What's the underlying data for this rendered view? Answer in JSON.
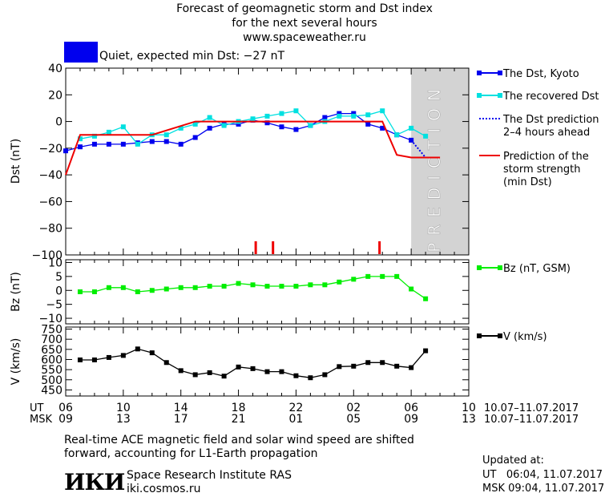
{
  "header": {
    "title_line1": "Forecast of geomagnetic storm and Dst index",
    "title_line2": "for the next several hours",
    "title_line3": "www.spaceweather.ru"
  },
  "status": {
    "box_color": "#0000ee",
    "text": "Quiet, expected min Dst: −27 nT"
  },
  "footer": {
    "note_line1": "Real-time ACE magnetic field and solar wind speed are shifted",
    "note_line2": "forward, accounting for L1-Earth propagation",
    "logo_text": "ИКИ",
    "institute": "Space Research Institute RAS",
    "website": "iki.cosmos.ru",
    "updated_label": "Updated at:",
    "updated_ut": "UT   06:04, 11.07.2017",
    "updated_msk": "MSK 09:04, 11.07.2017"
  },
  "chart_data": [
    {
      "type": "line",
      "ylabel": "Dst (nT)",
      "ylim": [
        -100,
        40
      ],
      "yticks": [
        40,
        20,
        0,
        -20,
        -40,
        -60,
        -80,
        -100
      ],
      "xlim": [
        6,
        34
      ],
      "prediction_label": "PREDICTION",
      "prediction_xrange": [
        30,
        34
      ],
      "storm_markers_x": [
        19.2,
        20.4,
        27.8
      ],
      "series": [
        {
          "name": "The Dst, Kyoto",
          "color": "#0000ee",
          "marker": "square",
          "x": [
            6,
            7,
            8,
            9,
            10,
            11,
            12,
            13,
            14,
            15,
            16,
            17,
            18,
            19,
            20,
            21,
            22,
            23,
            24,
            25,
            26,
            27,
            28,
            29,
            30
          ],
          "y": [
            -22,
            -19,
            -17,
            -17,
            -17,
            -16,
            -15,
            -15,
            -17,
            -12,
            -5,
            -2,
            -2,
            1,
            -1,
            -4,
            -6,
            -3,
            3,
            6,
            6,
            -2,
            -5,
            -10,
            -14
          ]
        },
        {
          "name": "The recovered Dst",
          "color": "#00e0e0",
          "marker": "square",
          "x": [
            7,
            8,
            9,
            10,
            11,
            12,
            13,
            14,
            15,
            16,
            17,
            18,
            19,
            20,
            21,
            22,
            23,
            24,
            25,
            26,
            27,
            28,
            29,
            30,
            31
          ],
          "y": [
            -13,
            -11,
            -8,
            -4,
            -17,
            -10,
            -10,
            -5,
            -2,
            3,
            -3,
            0,
            2,
            4,
            6,
            8,
            -3,
            0,
            4,
            4,
            5,
            8,
            -10,
            -5,
            -11
          ]
        },
        {
          "name": "The Dst prediction 2–4 hours ahead",
          "color": "#0000ee",
          "style": "dotted",
          "x": [
            30,
            31,
            32
          ],
          "y": [
            -14,
            -27,
            -27
          ]
        },
        {
          "name": "Prediction of the storm strength (min Dst)",
          "color": "#ee0000",
          "x": [
            6,
            7,
            12,
            15,
            28,
            29,
            30,
            32
          ],
          "y": [
            -40,
            -10,
            -10,
            0,
            0,
            -25,
            -27,
            -27
          ]
        }
      ],
      "legend": [
        {
          "label_line1": "The Dst, Kyoto",
          "label_line2": "",
          "label_line3": ""
        },
        {
          "label_line1": "The recovered Dst",
          "label_line2": "",
          "label_line3": ""
        },
        {
          "label_line1": "The Dst prediction",
          "label_line2": "2–4 hours ahead",
          "label_line3": ""
        },
        {
          "label_line1": "Prediction of the",
          "label_line2": "storm strength",
          "label_line3": "(min Dst)"
        }
      ]
    },
    {
      "type": "line",
      "ylabel": "Bz (nT)",
      "ylim": [
        -12,
        11
      ],
      "yticks": [
        10,
        5,
        0,
        -5,
        -10
      ],
      "xlim": [
        6,
        34
      ],
      "series": [
        {
          "name": "Bz (nT, GSM)",
          "color": "#00ee00",
          "marker": "square",
          "x": [
            7,
            8,
            9,
            10,
            11,
            12,
            13,
            14,
            15,
            16,
            17,
            18,
            19,
            20,
            21,
            22,
            23,
            24,
            25,
            26,
            27,
            28,
            29,
            30,
            31
          ],
          "y": [
            -0.5,
            -0.5,
            1,
            1,
            -0.5,
            0,
            0.5,
            1,
            1,
            1.5,
            1.5,
            2.5,
            2,
            1.5,
            1.5,
            1.5,
            2,
            2,
            3,
            4,
            5,
            5,
            5,
            0.5,
            -3
          ]
        }
      ]
    },
    {
      "type": "line",
      "ylabel": "V (km/s)",
      "ylim": [
        420,
        760
      ],
      "yticks": [
        750,
        700,
        650,
        600,
        550,
        500,
        450
      ],
      "xlim": [
        6,
        34
      ],
      "series": [
        {
          "name": "V (km/s)",
          "color": "#000000",
          "marker": "square",
          "x": [
            7,
            8,
            9,
            10,
            11,
            12,
            13,
            14,
            15,
            16,
            17,
            18,
            19,
            20,
            21,
            22,
            23,
            24,
            25,
            26,
            27,
            28,
            29,
            30,
            31
          ],
          "y": [
            598,
            598,
            610,
            620,
            652,
            633,
            585,
            545,
            525,
            535,
            518,
            563,
            555,
            540,
            540,
            520,
            510,
            525,
            565,
            567,
            585,
            585,
            567,
            560,
            643
          ]
        }
      ]
    }
  ],
  "xaxis": {
    "ut_label": "UT",
    "msk_label": "MSK",
    "ut_ticks": [
      "06",
      "10",
      "14",
      "18",
      "22",
      "02",
      "06",
      "10"
    ],
    "msk_ticks": [
      "09",
      "13",
      "17",
      "21",
      "01",
      "05",
      "09",
      "13"
    ],
    "range_ut": "10.07–11.07.2017",
    "range_msk": "10.07–11.07.2017"
  }
}
